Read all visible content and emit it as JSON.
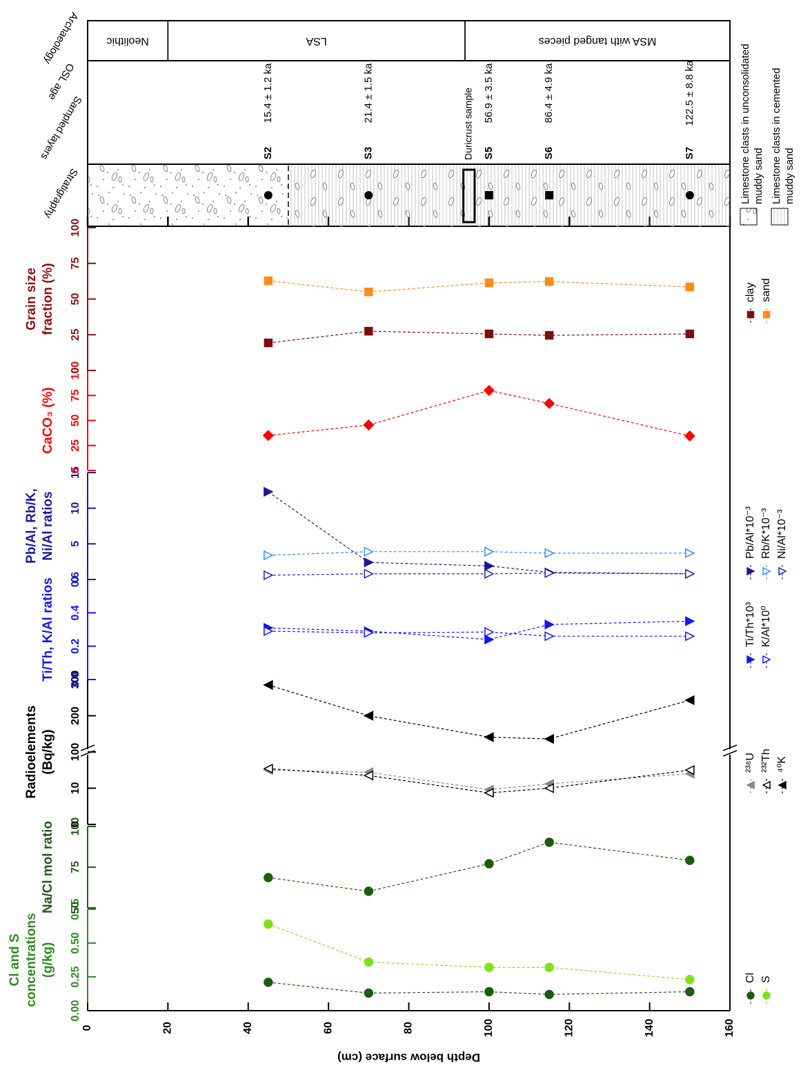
{
  "chart_data": [
    {
      "type": "line",
      "title": [
        "Cl and S",
        "concentrations",
        "(g/kg)"
      ],
      "axis_color": "#2e8b22",
      "x": [
        45,
        70,
        100,
        115,
        150
      ],
      "xlim": [
        0,
        160
      ],
      "xticks": [
        0,
        20,
        40,
        60,
        80,
        100,
        120,
        140,
        160
      ],
      "x_label": "Depth below surface (cm)",
      "ylim": [
        0,
        0.75
      ],
      "yticks": [
        {
          "value": 0,
          "label": "0.00"
        },
        {
          "value": 0.25,
          "label": "0.25"
        },
        {
          "value": 0.5,
          "label": "0.50"
        },
        {
          "value": 0.75,
          "label": "0.75"
        }
      ],
      "series": [
        {
          "name": "Cl",
          "color": "#1b5e12",
          "marker": "circle",
          "filled": true,
          "values": [
            0.21,
            0.13,
            0.14,
            0.12,
            0.14
          ]
        },
        {
          "name": "S",
          "color": "#7fe01e",
          "marker": "circle",
          "filled": true,
          "values": [
            0.64,
            0.36,
            0.32,
            0.32,
            0.23
          ]
        }
      ]
    },
    {
      "type": "line",
      "title": [
        "Na/Cl mol ratio"
      ],
      "axis_color": "#1e5c10",
      "x": [
        45,
        70,
        100,
        115,
        150
      ],
      "xlim": [
        0,
        160
      ],
      "ylim": [
        50,
        100
      ],
      "yticks": [
        50,
        75,
        100
      ],
      "series": [
        {
          "color": "#1e5c10",
          "marker": "circle",
          "filled": true,
          "values": [
            68.6,
            60.2,
            77.1,
            90.3,
            79.2
          ]
        }
      ]
    },
    {
      "type": "line",
      "title": [
        "Radioelements",
        "(Bq/kg)"
      ],
      "axis_color": "#000000",
      "x": [
        45,
        70,
        100,
        115,
        150
      ],
      "xlim": [
        0,
        160
      ],
      "ylim": [
        0,
        300
      ],
      "axis_break": [
        20,
        100
      ],
      "yticks": [
        0,
        10,
        100,
        200,
        300
      ],
      "series": [
        {
          "name": "²³⁸U",
          "color": "#888888",
          "marker": "triangle-left",
          "filled": true,
          "values": [
            15,
            14.4,
            9.6,
            11.2,
            14
          ]
        },
        {
          "name": "²³²Th",
          "color": "#000000",
          "marker": "triangle-left",
          "filled": false,
          "values": [
            15.4,
            13.5,
            8.7,
            10,
            15
          ]
        },
        {
          "name": "⁴⁰K",
          "color": "#000000",
          "marker": "triangle-left",
          "filled": true,
          "values": [
            285,
            200,
            141,
            136,
            243
          ]
        }
      ]
    },
    {
      "type": "line",
      "title": [
        "Ti/Th, K/Al ratios"
      ],
      "axis_color": "#1515ff",
      "x": [
        45,
        70,
        100,
        115,
        150
      ],
      "xlim": [
        0,
        160
      ],
      "ylim": [
        0,
        0.6
      ],
      "yticks": [
        {
          "value": 0,
          "label": "0.0"
        },
        {
          "value": 0.2,
          "label": "0.2"
        },
        {
          "value": 0.4,
          "label": "0.4"
        },
        {
          "value": 0.6,
          "label": "0.6"
        }
      ],
      "series": [
        {
          "name": "Ti/Th*10³",
          "color": "#1515ff",
          "marker": "triangle-right",
          "filled": true,
          "values": [
            0.31,
            0.29,
            0.24,
            0.33,
            0.35
          ]
        },
        {
          "name": "K/Al*10⁰",
          "color": "#1515ff",
          "marker": "triangle-right",
          "filled": false,
          "values": [
            0.29,
            0.28,
            0.285,
            0.26,
            0.26
          ]
        }
      ]
    },
    {
      "type": "line",
      "title": [
        "Pb/Al, Rb/K,",
        "Ni/Al ratios"
      ],
      "axis_color": "#1a1a9e",
      "x": [
        45,
        70,
        100,
        115,
        150
      ],
      "xlim": [
        0,
        160
      ],
      "ylim": [
        0,
        15
      ],
      "yticks": [
        0,
        5,
        10,
        15
      ],
      "series": [
        {
          "name": "Pb/Al*10⁻³",
          "color": "#1a1a8e",
          "marker": "triangle-right",
          "filled": true,
          "values": [
            12.3,
            2.4,
            1.9,
            1.0,
            0.8
          ]
        },
        {
          "name": "Rb/K*10⁻³",
          "color": "#2f8fff",
          "marker": "triangle-right",
          "filled": false,
          "values": [
            3.4,
            3.9,
            3.9,
            3.7,
            3.7
          ]
        },
        {
          "name": "Ni/Al*10⁻³",
          "color": "#2323b0",
          "marker": "triangle-right",
          "filled": false,
          "values": [
            0.6,
            0.8,
            0.8,
            0.9,
            0.8
          ]
        }
      ]
    },
    {
      "type": "line",
      "title": [
        "CaCO₃ (%)"
      ],
      "axis_color": "#ff0000",
      "x": [
        45,
        70,
        100,
        115,
        150
      ],
      "xlim": [
        0,
        160
      ],
      "ylim": [
        0,
        100
      ],
      "yticks": [
        0,
        25,
        50,
        75,
        100
      ],
      "series": [
        {
          "color": "#ff0000",
          "marker": "diamond",
          "filled": true,
          "values": [
            35,
            45.5,
            80,
            67,
            34.5
          ]
        }
      ]
    },
    {
      "type": "line",
      "title": [
        "Grain size",
        "fraction (%)"
      ],
      "axis_color": "#8b1010",
      "x": [
        45,
        70,
        100,
        115,
        150
      ],
      "xlim": [
        0,
        160
      ],
      "ylim": [
        0,
        100
      ],
      "yticks": [
        0,
        25,
        50,
        75,
        100
      ],
      "series": [
        {
          "name": "clay",
          "color": "#7a0f0f",
          "marker": "square",
          "filled": true,
          "values": [
            19.3,
            27.5,
            25.6,
            24.6,
            25.6
          ]
        },
        {
          "name": "sand",
          "color": "#ff8c1a",
          "marker": "square",
          "filled": true,
          "values": [
            62.8,
            55,
            61.4,
            62.3,
            58.5
          ]
        }
      ]
    }
  ],
  "section": {
    "labels": {
      "stratigraphy": "Stratigraphy",
      "sampled_layers": "Sampled layers",
      "osl_age": "OSL age",
      "archaeology": "Archaeology"
    },
    "units": [
      {
        "from": 0,
        "to": 50,
        "legend": [
          "Limestone clasts in unconsolidated",
          "muddy sand"
        ]
      },
      {
        "from": 50,
        "to": 160,
        "legend": [
          "Limestone clasts in cemented",
          "muddy sand"
        ]
      }
    ],
    "samples": [
      {
        "label": "S2",
        "depth": 45,
        "marker": "circle",
        "age": "15.4 ± 1.2 ka"
      },
      {
        "label": "S3",
        "depth": 70,
        "marker": "circle",
        "age": "21.4 ± 1.5 ka"
      },
      {
        "label": "S5",
        "depth": 100,
        "marker": "square",
        "age": "56.9 ± 3.5 ka"
      },
      {
        "label": "S6",
        "depth": 115,
        "marker": "square",
        "age": "86.4 ± 4.9 ka"
      },
      {
        "label": "S7",
        "depth": 150,
        "marker": "circle",
        "age": "122.5 ± 8.8 ka"
      }
    ],
    "duricrust": {
      "label": "Duricrust sample",
      "from": 93.6,
      "to": 96.4
    },
    "archaeology": [
      {
        "label": "Neolithic",
        "from": 0,
        "to": 20
      },
      {
        "label": "LSA",
        "from": 20,
        "to": 94
      },
      {
        "label": "MSA with tanged pieces",
        "from": 94,
        "to": 160
      }
    ]
  }
}
